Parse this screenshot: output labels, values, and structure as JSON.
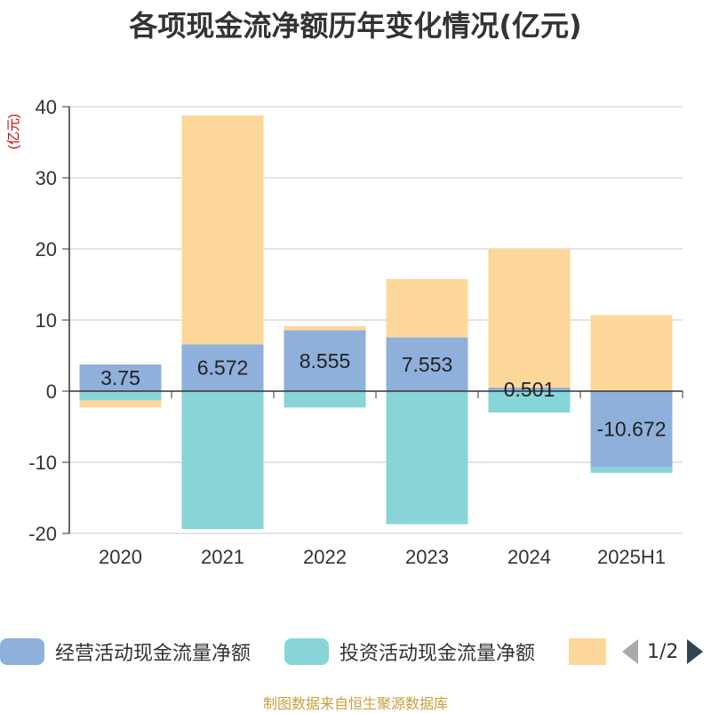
{
  "chart_data": {
    "type": "bar",
    "stacked": true,
    "title": "各项现金流净额历年变化情况(亿元)",
    "ylabel": "(亿元)",
    "categories": [
      "2020",
      "2021",
      "2022",
      "2023",
      "2024",
      "2025H1"
    ],
    "ylim": [
      -20,
      40
    ],
    "yticks": [
      -20,
      -10,
      0,
      10,
      20,
      30,
      40
    ],
    "grid": true,
    "legend_position": "bottom",
    "series": [
      {
        "name": "经营活动现金流量净额",
        "color": "#8eb0db",
        "values": [
          3.75,
          6.572,
          8.555,
          7.553,
          0.501,
          -10.672
        ],
        "labels": [
          "3.75",
          "6.572",
          "8.555",
          "7.553",
          "0.501",
          "-10.672"
        ]
      },
      {
        "name": "投资活动现金流量净额",
        "color": "#88d5d8",
        "values": [
          -1.3,
          -19.4,
          -2.3,
          -18.7,
          -3.0,
          -0.8
        ]
      },
      {
        "name": "",
        "color": "#fdd89a",
        "values": [
          -1.0,
          32.2,
          0.6,
          8.2,
          19.5,
          10.7
        ]
      }
    ]
  },
  "legend": {
    "page": "1/2"
  },
  "source": "制图数据来自恒生聚源数据库"
}
